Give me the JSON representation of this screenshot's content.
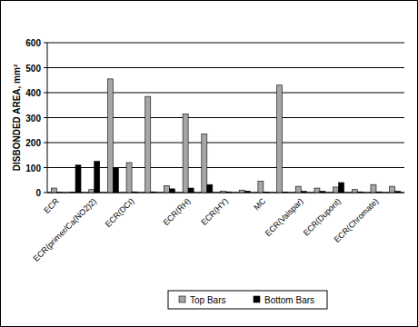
{
  "chart_data": {
    "type": "bar",
    "y_label": "DISBONDED AREA, mm²",
    "categories": [
      "ECR",
      null,
      "ECR(primer/Ca(NO2)2)",
      null,
      "ECR(DCI)",
      null,
      null,
      "ECR(RH)",
      null,
      "ECR(HY)",
      null,
      "MC",
      null,
      "ECR(Valspar)",
      null,
      "ECR(Dupont)",
      null,
      "ECR(Chromate)",
      null
    ],
    "series": [
      {
        "name": "Top Bars",
        "color": "#a6a6a6",
        "values": [
          18,
          2,
          12,
          455,
          120,
          385,
          28,
          315,
          235,
          5,
          10,
          45,
          430,
          25,
          18,
          22,
          12,
          32,
          25
        ]
      },
      {
        "name": "Bottom Bars",
        "color": "#000000",
        "values": [
          1,
          110,
          125,
          100,
          3,
          3,
          15,
          18,
          32,
          3,
          6,
          2,
          2,
          5,
          5,
          40,
          3,
          3,
          5
        ]
      }
    ],
    "ylim": [
      0,
      600
    ],
    "yticks": [
      0,
      100,
      200,
      300,
      400,
      500,
      600
    ],
    "grid": true,
    "legend": "bottom"
  }
}
